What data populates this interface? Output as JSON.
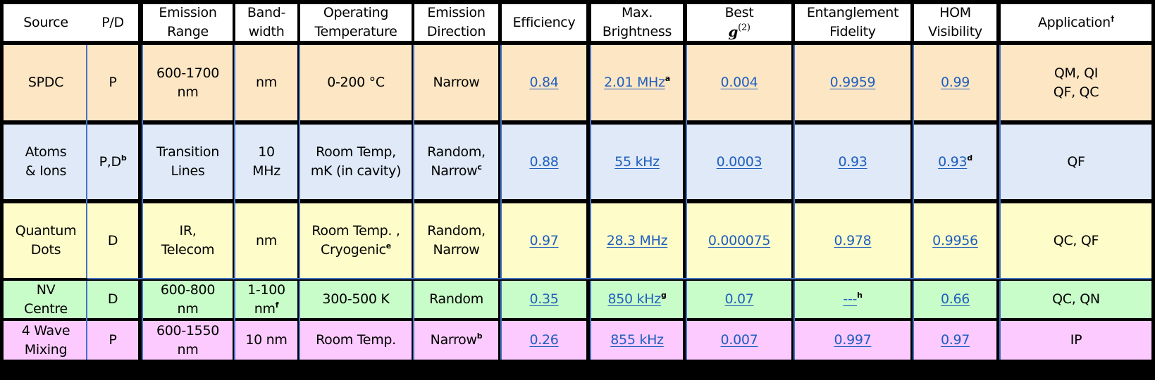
{
  "headers": [
    [
      "Source"
    ],
    [
      "P/D"
    ],
    [
      "Emission",
      "Range"
    ],
    [
      "Band-",
      "width"
    ],
    [
      "Operating",
      "Temperature"
    ],
    [
      "Emission",
      "Direction"
    ],
    [
      "Efficiency"
    ],
    [
      "Max.",
      "Brightness"
    ],
    [
      "Best",
      "g(2)"
    ],
    [
      "Entanglement",
      "Fidelity"
    ],
    [
      "HOM",
      "Visibility"
    ],
    [
      "Application†"
    ]
  ],
  "header_parts": {
    "g2_letter": "g",
    "g2_exp": "(2)",
    "app_label": "Application",
    "app_mark": "†"
  },
  "rows": [
    {
      "key": "spdc",
      "source": [
        "SPDC"
      ],
      "pd": "P",
      "pd_sup": "",
      "range": [
        "600-1700",
        "nm"
      ],
      "bandwidth": [
        "nm"
      ],
      "bandwidth_sup": "",
      "temperature": [
        "0-200 °C"
      ],
      "temperature_sup": "",
      "direction": [
        "Narrow"
      ],
      "direction_sup": "",
      "efficiency": "0.84",
      "brightness": "2.01 MHz",
      "brightness_sup": "a",
      "g2": "0.004",
      "fidelity": "0.9959",
      "fidelity_sup": "",
      "hom": "0.99",
      "hom_sup": "",
      "application": [
        "QM, QI",
        "QF, QC"
      ]
    },
    {
      "key": "atoms",
      "source": [
        "Atoms",
        "& Ions"
      ],
      "pd": "P,D",
      "pd_sup": "b",
      "range": [
        "Transition",
        "Lines"
      ],
      "bandwidth": [
        "10",
        "MHz"
      ],
      "bandwidth_sup": "",
      "temperature": [
        "Room Temp,",
        "mK (in cavity)"
      ],
      "temperature_sup": "",
      "direction": [
        "Random,",
        "Narrow"
      ],
      "direction_sup": "c",
      "efficiency": "0.88",
      "brightness": "55 kHz",
      "brightness_sup": "",
      "g2": "0.0003",
      "fidelity": "0.93",
      "fidelity_sup": "",
      "hom": "0.93",
      "hom_sup": "d",
      "application": [
        "QF"
      ]
    },
    {
      "key": "qd",
      "source": [
        "Quantum",
        "Dots"
      ],
      "pd": "D",
      "pd_sup": "",
      "range": [
        "IR,",
        "Telecom"
      ],
      "bandwidth": [
        "nm"
      ],
      "bandwidth_sup": "",
      "temperature": [
        "Room Temp. ,",
        "Cryogenic"
      ],
      "temperature_sup": "e",
      "direction": [
        "Random,",
        "Narrow"
      ],
      "direction_sup": "",
      "efficiency": "0.97",
      "brightness": "28.3 MHz",
      "brightness_sup": "",
      "g2": "0.000075",
      "fidelity": "0.978",
      "fidelity_sup": "",
      "hom": "0.9956",
      "hom_sup": "",
      "application": [
        "QC, QF"
      ]
    },
    {
      "key": "nv",
      "source": [
        "NV",
        "Centre"
      ],
      "pd": "D",
      "pd_sup": "",
      "range": [
        "600-800",
        "nm"
      ],
      "bandwidth": [
        "1-100",
        "nm"
      ],
      "bandwidth_sup": "f",
      "temperature": [
        "300-500 K"
      ],
      "temperature_sup": "",
      "direction": [
        "Random"
      ],
      "direction_sup": "",
      "efficiency": "0.35",
      "brightness": "850 kHz",
      "brightness_sup": "g",
      "g2": "0.07",
      "fidelity": "---",
      "fidelity_sup": "h",
      "hom": "0.66",
      "hom_sup": "",
      "application": [
        "QC, QN"
      ]
    },
    {
      "key": "fwm",
      "source": [
        "4 Wave",
        "Mixing"
      ],
      "pd": "P",
      "pd_sup": "",
      "range": [
        "600-1550",
        "nm"
      ],
      "bandwidth": [
        "10 nm"
      ],
      "bandwidth_sup": "",
      "temperature": [
        "Room Temp."
      ],
      "temperature_sup": "",
      "direction": [
        "Narrow"
      ],
      "direction_sup": "b",
      "efficiency": "0.26",
      "brightness": "855 kHz",
      "brightness_sup": "",
      "g2": "0.007",
      "fidelity": "0.997",
      "fidelity_sup": "",
      "hom": "0.97",
      "hom_sup": "",
      "application": [
        "IP"
      ]
    }
  ],
  "colors": {
    "header": "#ffffff",
    "spdc": "#fde6c4",
    "atoms": "#dfe9f7",
    "qd": "#fefcc8",
    "nv": "#c8fcc8",
    "fwm": "#fccaff",
    "link": "#1f5fbf",
    "inner_border": "#4472c4",
    "outer_border": "#000000"
  }
}
